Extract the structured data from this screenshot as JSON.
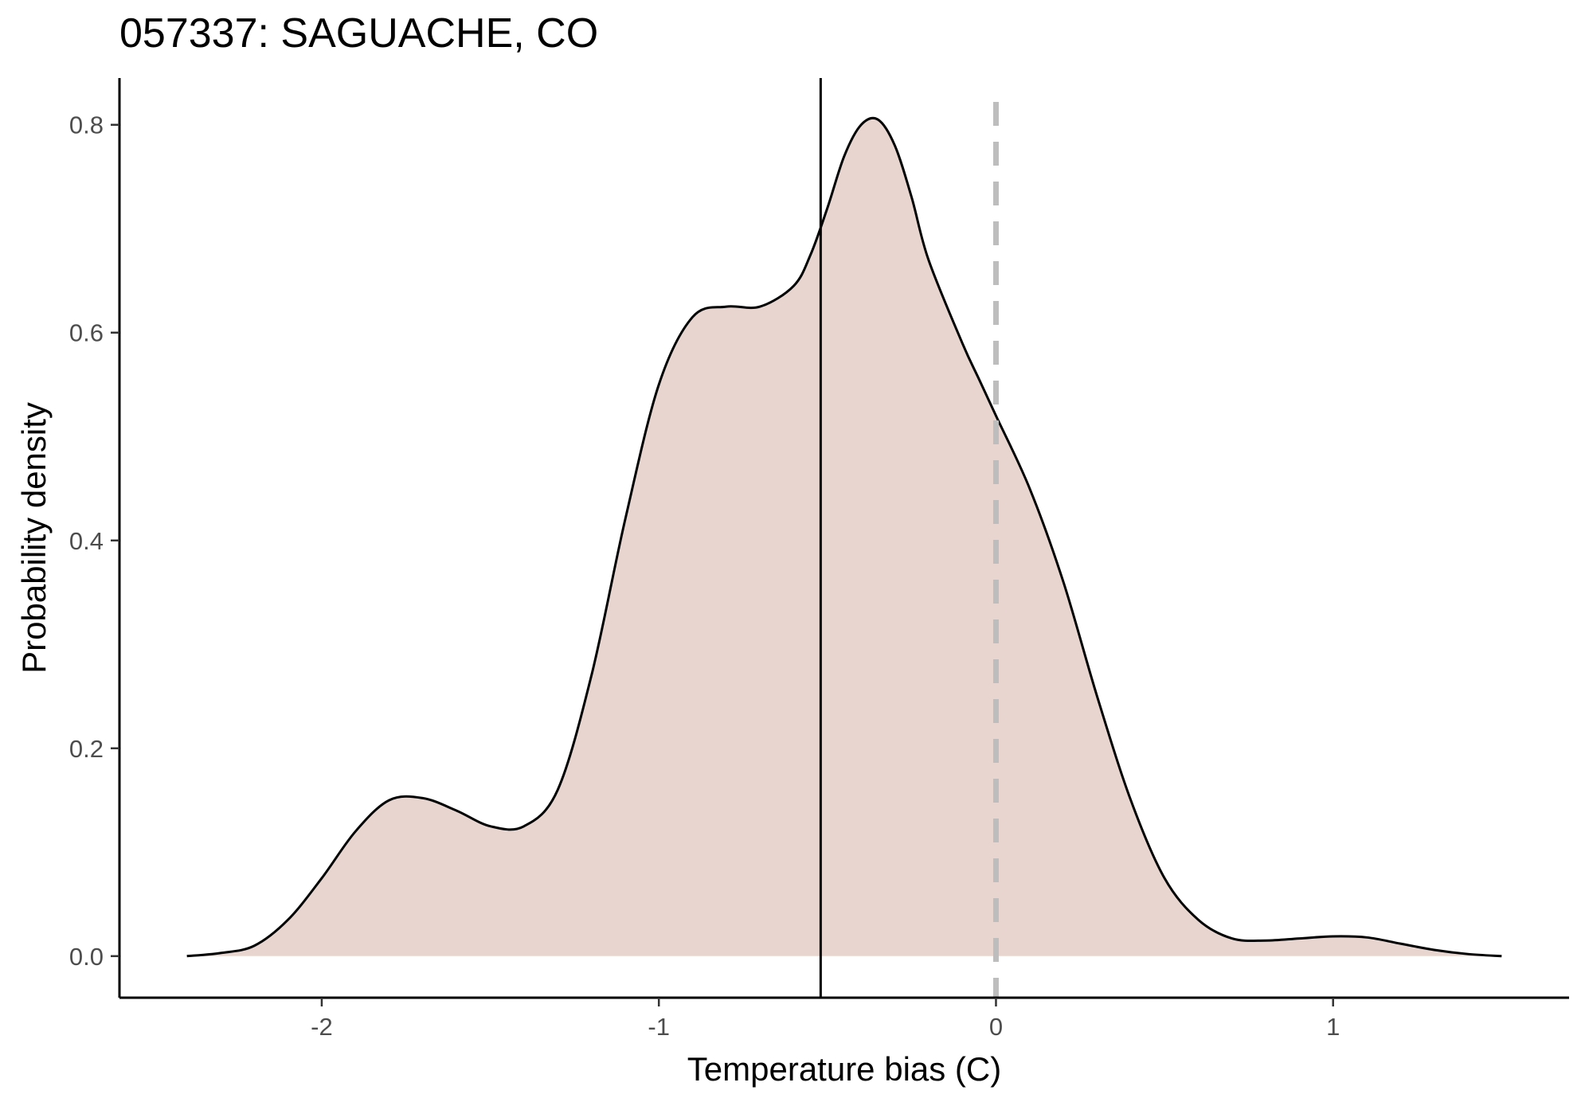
{
  "chart_data": {
    "type": "area",
    "title": "057337: SAGUACHE, CO",
    "xlabel": "Temperature bias (C)",
    "ylabel": "Probability density",
    "xlim": [
      -2.6,
      1.7
    ],
    "ylim": [
      -0.04,
      0.845
    ],
    "x_ticks": [
      -2,
      -1,
      0,
      1
    ],
    "x_tick_labels": [
      "-2",
      "-1",
      "0",
      "1"
    ],
    "y_ticks": [
      0.0,
      0.2,
      0.4,
      0.6,
      0.8
    ],
    "y_tick_labels": [
      "0.0",
      "0.2",
      "0.4",
      "0.6",
      "0.8"
    ],
    "grid": false,
    "fill_color": "#e8d5cf",
    "line_color": "#000000",
    "reference_lines": [
      {
        "x": -0.52,
        "style": "solid",
        "color": "#000000"
      },
      {
        "x": 0.0,
        "style": "dashed",
        "color": "#bdbdbd"
      }
    ],
    "series": [
      {
        "x": [
          -2.4,
          -2.3,
          -2.2,
          -2.1,
          -2.0,
          -1.9,
          -1.8,
          -1.7,
          -1.6,
          -1.5,
          -1.4,
          -1.3,
          -1.2,
          -1.1,
          -1.0,
          -0.9,
          -0.8,
          -0.7,
          -0.6,
          -0.55,
          -0.5,
          -0.45,
          -0.4,
          -0.35,
          -0.3,
          -0.25,
          -0.2,
          -0.1,
          -0.05,
          0.0,
          0.1,
          0.2,
          0.3,
          0.4,
          0.5,
          0.6,
          0.7,
          0.8,
          0.9,
          1.0,
          1.1,
          1.2,
          1.3,
          1.4,
          1.5
        ],
        "y": [
          0.0,
          0.003,
          0.01,
          0.035,
          0.075,
          0.12,
          0.15,
          0.152,
          0.14,
          0.125,
          0.125,
          0.16,
          0.27,
          0.42,
          0.55,
          0.615,
          0.625,
          0.625,
          0.645,
          0.675,
          0.72,
          0.77,
          0.8,
          0.805,
          0.78,
          0.73,
          0.67,
          0.59,
          0.555,
          0.52,
          0.45,
          0.36,
          0.25,
          0.15,
          0.075,
          0.035,
          0.017,
          0.015,
          0.017,
          0.019,
          0.018,
          0.012,
          0.006,
          0.002,
          0.0
        ]
      }
    ]
  }
}
